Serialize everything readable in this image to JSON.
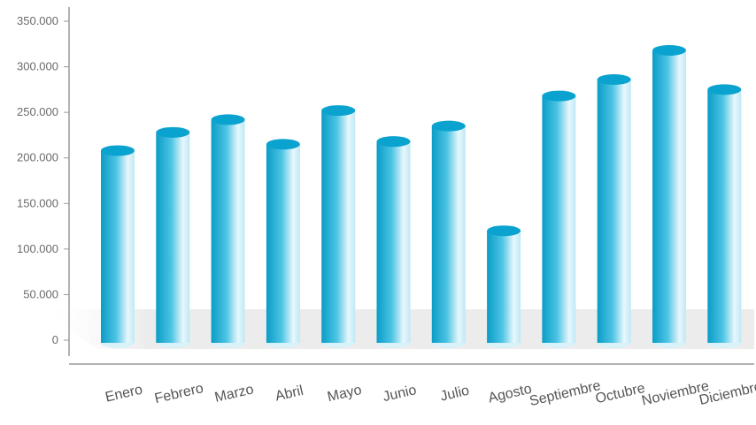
{
  "chart_data": {
    "type": "bar",
    "title": "",
    "xlabel": "",
    "ylabel": "",
    "categories": [
      "Enero",
      "Febrero",
      "Marzo",
      "Abril",
      "Mayo",
      "Junio",
      "Julio",
      "Agosto",
      "Septiembre",
      "Octubre",
      "Noviembre",
      "Diciembre"
    ],
    "values": [
      208000,
      228000,
      242000,
      215000,
      252000,
      218000,
      235000,
      120000,
      268000,
      286000,
      318000,
      275000
    ],
    "ylim": [
      0,
      350000
    ],
    "yticks": [
      0,
      50000,
      100000,
      150000,
      200000,
      250000,
      300000,
      350000
    ],
    "ytick_labels": [
      "0",
      "50.000",
      "100.000",
      "150.000",
      "200.000",
      "250.000",
      "300.000",
      "350.000"
    ],
    "grid": false,
    "legend": "none",
    "style": "3d-cylinder",
    "colors": {
      "bar_dark": "#0e9fc8",
      "bar_mid": "#35b9dc",
      "bar_light": "#e6f6fb",
      "bar_top": "#0aa3cf",
      "axis": "#9a9a9a",
      "text": "#6a6a6a"
    }
  }
}
